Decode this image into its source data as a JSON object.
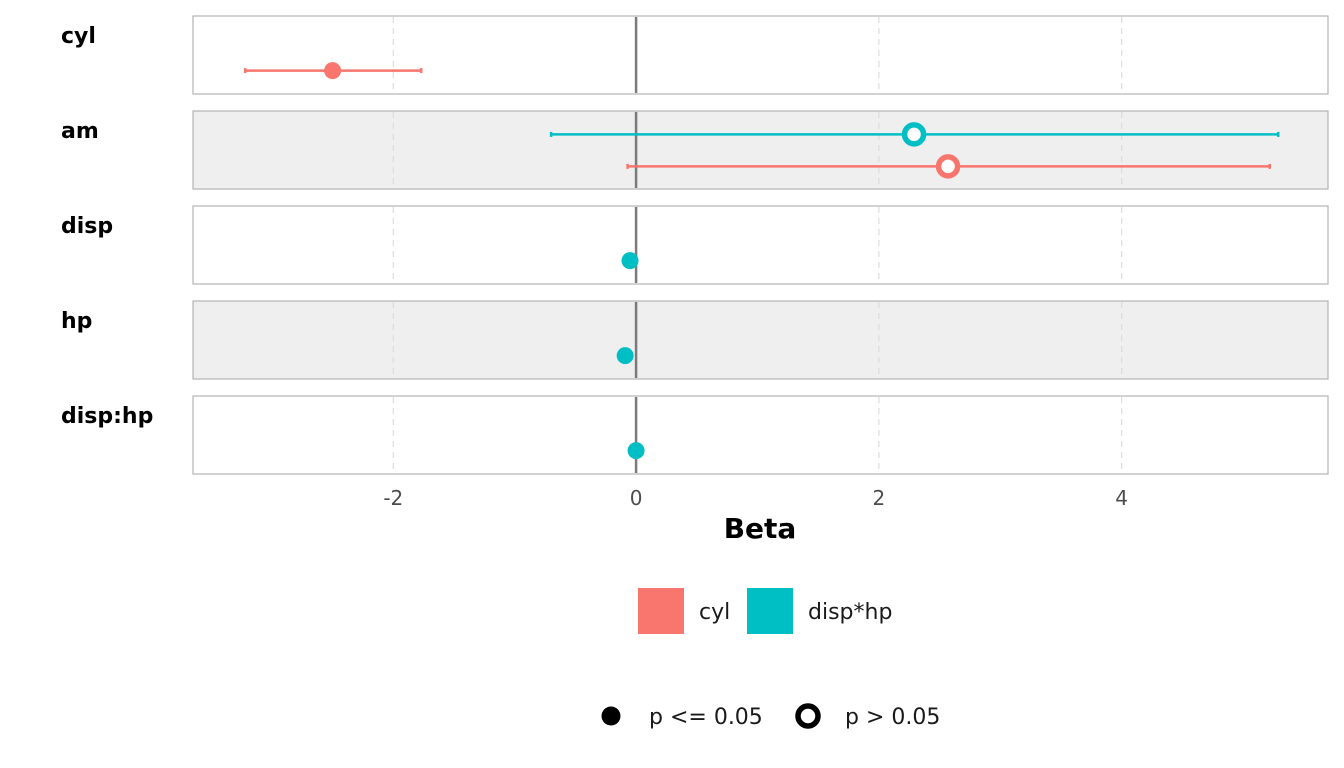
{
  "chart_data": {
    "type": "forest",
    "title": "",
    "xlabel": "Beta",
    "ylabel": "",
    "xlim": [
      -3.65,
      5.7
    ],
    "x_ticks": [
      -2,
      0,
      2,
      4
    ],
    "x_tick_labels": [
      "-2",
      "0",
      "2",
      "4"
    ],
    "grid": "vertical dashed at ticks",
    "reference_line": 0,
    "facets": [
      "cyl",
      "am",
      "disp",
      "hp",
      "disp:hp"
    ],
    "series": [
      {
        "name": "cyl",
        "color": "#F8766D",
        "points": [
          {
            "term": "cyl",
            "estimate": -2.5,
            "low": -3.22,
            "high": -1.77,
            "p_le_005": true
          },
          {
            "term": "am",
            "estimate": 2.57,
            "low": -0.07,
            "high": 5.22,
            "p_le_005": false
          }
        ]
      },
      {
        "name": "disp*hp",
        "color": "#00BFC4",
        "points": [
          {
            "term": "am",
            "estimate": 2.29,
            "low": -0.7,
            "high": 5.29,
            "p_le_005": false
          },
          {
            "term": "disp",
            "estimate": -0.05,
            "low": null,
            "high": null,
            "p_le_005": true
          },
          {
            "term": "hp",
            "estimate": -0.09,
            "low": null,
            "high": null,
            "p_le_005": true
          },
          {
            "term": "disp:hp",
            "estimate": 0.0,
            "low": null,
            "high": null,
            "p_le_005": true
          }
        ]
      }
    ],
    "legend_colors": {
      "position": "bottom",
      "entries": [
        {
          "label": "cyl",
          "color": "#F8766D"
        },
        {
          "label": "disp*hp",
          "color": "#00BFC4"
        }
      ]
    },
    "legend_shapes": {
      "position": "bottom",
      "entries": [
        {
          "label": "p <= 0.05",
          "shape": "filled-circle"
        },
        {
          "label": "p > 0.05",
          "shape": "hollow-circle"
        }
      ]
    }
  }
}
